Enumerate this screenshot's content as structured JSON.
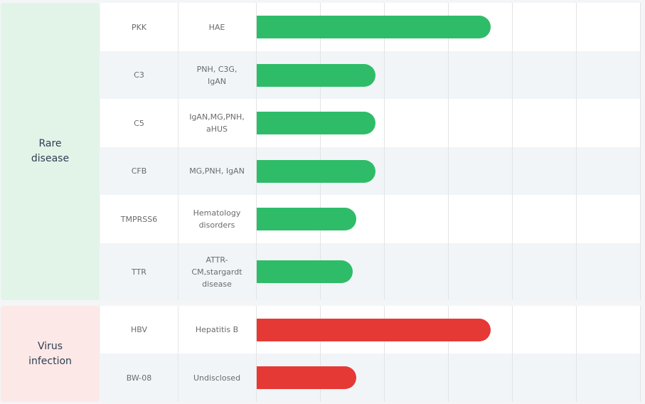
{
  "chart_data": {
    "type": "bar",
    "xlim": [
      0,
      6
    ],
    "xticks": [
      0,
      1,
      2,
      3,
      4,
      5,
      6
    ],
    "grid": true,
    "groups": [
      {
        "name": "Rare disease",
        "background": "#e2f4e8",
        "color": "#2fbc68",
        "rows": [
          {
            "target": "PKK",
            "indication": "HAE",
            "value": 3.65
          },
          {
            "target": "C3",
            "indication": "PNH, C3G, IgAN",
            "value": 1.85
          },
          {
            "target": "C5",
            "indication": "IgAN,MG,PNH, aHUS",
            "value": 1.85
          },
          {
            "target": "CFB",
            "indication": "MG,PNH, IgAN",
            "value": 1.85
          },
          {
            "target": "TMPRSS6",
            "indication": "Hematology disorders",
            "value": 1.55
          },
          {
            "target": "TTR",
            "indication": "ATTR-CM,stargardt disease",
            "value": 1.5
          }
        ]
      },
      {
        "name": "Virus infection",
        "background": "#fde8e8",
        "color": "#e53935",
        "rows": [
          {
            "target": "HBV",
            "indication": "Hepatitis B",
            "value": 3.65
          },
          {
            "target": "BW-08",
            "indication": "Undisclosed",
            "value": 1.55
          }
        ]
      }
    ]
  }
}
